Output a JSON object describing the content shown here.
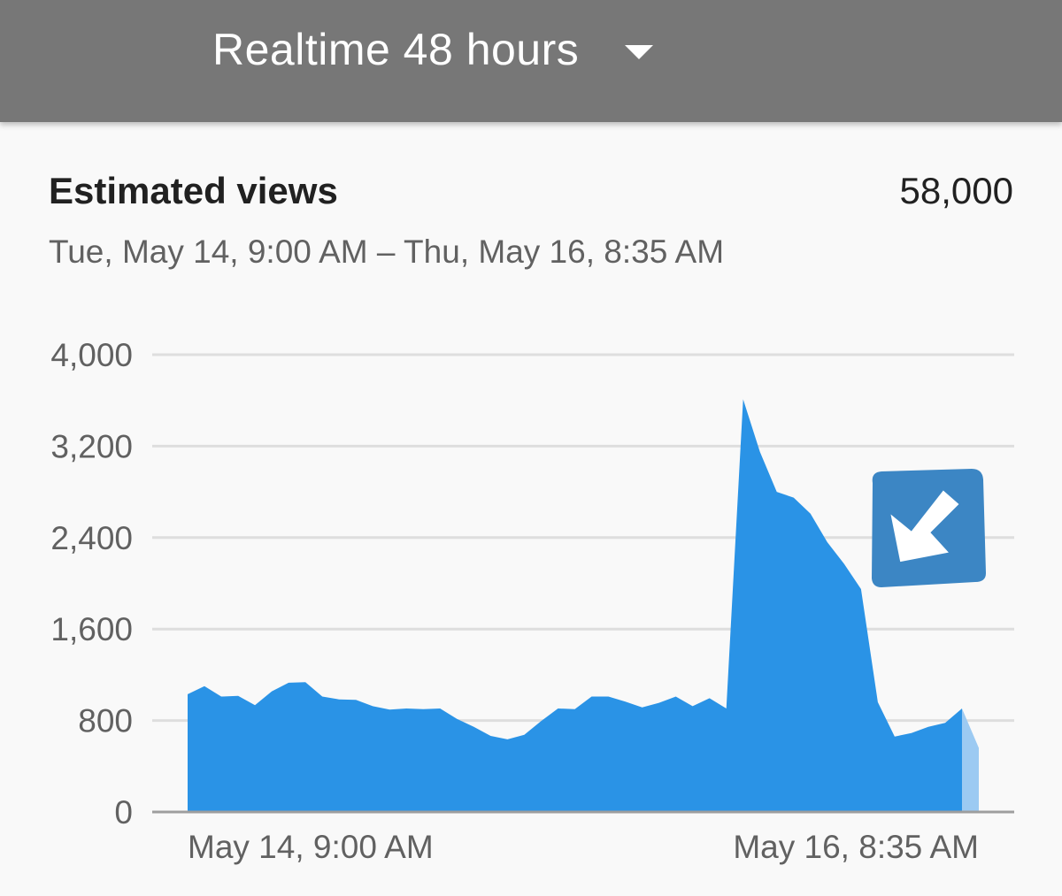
{
  "header": {
    "range_label": "Realtime 48 hours",
    "dropdown_icon": "caret-down-icon"
  },
  "metric": {
    "title": "Estimated views",
    "total": "58,000",
    "date_range": "Tue, May 14, 9:00 AM – Thu, May 16, 8:35 AM"
  },
  "colors": {
    "header_bg": "#777777",
    "area_fill": "#2a93e6",
    "partial_fill": "#9ccaf2",
    "badge_bg": "#3c86c4"
  },
  "overlay": {
    "icon": "arrow-down-left-icon"
  },
  "chart_data": {
    "type": "area",
    "title": "",
    "xlabel": "",
    "ylabel": "",
    "ylim": [
      0,
      4000
    ],
    "y_ticks": [
      0,
      800,
      1600,
      2400,
      3200,
      4000
    ],
    "y_tick_labels": [
      "0",
      "800",
      "1,600",
      "2,400",
      "3,200",
      "4,000"
    ],
    "x_tick_labels": [
      "May 14, 9:00 AM",
      "May 16, 8:35 AM"
    ],
    "grid": true,
    "series": [
      {
        "values": [
          1030,
          1100,
          1010,
          1015,
          935,
          1055,
          1130,
          1135,
          1010,
          985,
          980,
          925,
          895,
          905,
          900,
          905,
          815,
          745,
          665,
          635,
          675,
          795,
          905,
          900,
          1010,
          1010,
          965,
          915,
          955,
          1010,
          925,
          995,
          905,
          3610,
          3150,
          2800,
          2750,
          2610,
          2360,
          2170,
          1950,
          960,
          660,
          690,
          745,
          780,
          905,
          560
        ],
        "partial_last_interval": true
      }
    ]
  }
}
